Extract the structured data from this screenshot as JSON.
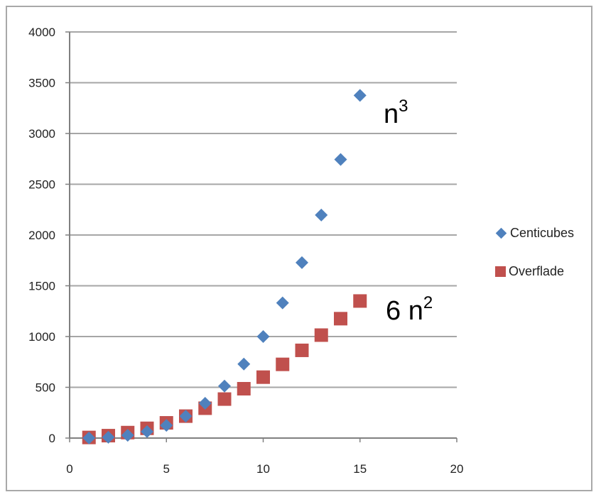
{
  "colors": {
    "centicubes": "#4f81bd",
    "overflade": "#c0504d",
    "grid": "#a6a6a6",
    "axis": "#808080"
  },
  "chart_data": {
    "type": "scatter",
    "xlim": [
      0,
      20
    ],
    "ylim": [
      0,
      4000
    ],
    "x_ticks": [
      "0",
      "5",
      "10",
      "15",
      "20"
    ],
    "y_ticks": [
      "0",
      "500",
      "1000",
      "1500",
      "2000",
      "2500",
      "3000",
      "3500",
      "4000"
    ],
    "grid": "horizontal",
    "legend_position": "right",
    "series": [
      {
        "name": "Centicubes",
        "marker": "diamond",
        "x": [
          1,
          2,
          3,
          4,
          5,
          6,
          7,
          8,
          9,
          10,
          11,
          12,
          13,
          14,
          15
        ],
        "y": [
          1,
          8,
          27,
          64,
          125,
          216,
          343,
          512,
          729,
          1000,
          1331,
          1728,
          2197,
          2744,
          3375
        ]
      },
      {
        "name": "Overflade",
        "marker": "square",
        "x": [
          1,
          2,
          3,
          4,
          5,
          6,
          7,
          8,
          9,
          10,
          11,
          12,
          13,
          14,
          15
        ],
        "y": [
          6,
          24,
          54,
          96,
          150,
          216,
          294,
          384,
          486,
          600,
          726,
          864,
          1014,
          1176,
          1350
        ]
      }
    ],
    "annotations": [
      {
        "base": "n",
        "exp": "3"
      },
      {
        "base": "6 n",
        "exp": "2"
      }
    ]
  }
}
